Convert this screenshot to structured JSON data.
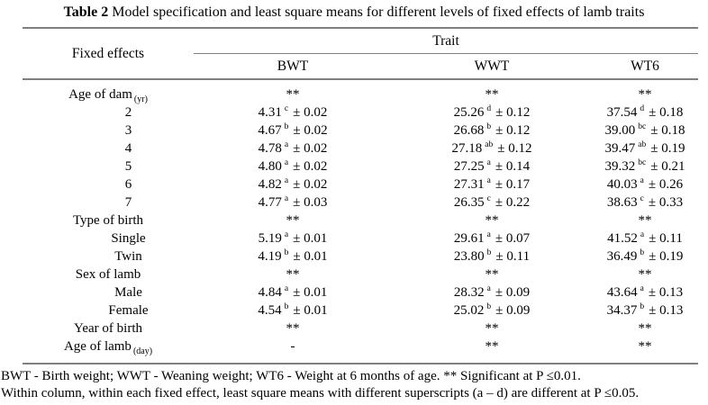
{
  "title": {
    "label": "Table 2",
    "text": " Model specification and least square means for different levels of fixed effects of lamb traits"
  },
  "table": {
    "header": {
      "fixed_effects": "Fixed effects",
      "trait_group": "Trait",
      "columns": [
        "BWT",
        "WWT",
        "WT6"
      ]
    },
    "rows": [
      {
        "label": "Age of dam",
        "label_sub": "(yr)",
        "kind": "category",
        "cells": [
          {
            "v": "**",
            "sup": "",
            "se": ""
          },
          {
            "v": "**",
            "sup": "",
            "se": ""
          },
          {
            "v": "**",
            "sup": "",
            "se": ""
          }
        ]
      },
      {
        "label": "2",
        "label_sub": "",
        "kind": "level",
        "cells": [
          {
            "v": "4.31",
            "sup": "c",
            "se": "± 0.02"
          },
          {
            "v": "25.26",
            "sup": "d",
            "se": "± 0.12"
          },
          {
            "v": "37.54",
            "sup": "d",
            "se": "± 0.18"
          }
        ]
      },
      {
        "label": "3",
        "label_sub": "",
        "kind": "level",
        "cells": [
          {
            "v": "4.67",
            "sup": "b",
            "se": "± 0.02"
          },
          {
            "v": "26.68",
            "sup": "b",
            "se": "± 0.12"
          },
          {
            "v": "39.00",
            "sup": "bc",
            "se": "± 0.18"
          }
        ]
      },
      {
        "label": "4",
        "label_sub": "",
        "kind": "level",
        "cells": [
          {
            "v": "4.78",
            "sup": "a",
            "se": "± 0.02"
          },
          {
            "v": "27.18",
            "sup": "ab",
            "se": "± 0.12"
          },
          {
            "v": "39.47",
            "sup": "ab",
            "se": "± 0.19"
          }
        ]
      },
      {
        "label": "5",
        "label_sub": "",
        "kind": "level",
        "cells": [
          {
            "v": "4.80",
            "sup": "a",
            "se": "± 0.02"
          },
          {
            "v": "27.25",
            "sup": "a",
            "se": "± 0.14"
          },
          {
            "v": "39.32",
            "sup": "bc",
            "se": "± 0.21"
          }
        ]
      },
      {
        "label": "6",
        "label_sub": "",
        "kind": "level",
        "cells": [
          {
            "v": "4.82",
            "sup": "a",
            "se": "± 0.02"
          },
          {
            "v": "27.31",
            "sup": "a",
            "se": "± 0.17"
          },
          {
            "v": "40.03",
            "sup": "a",
            "se": "± 0.26"
          }
        ]
      },
      {
        "label": "7",
        "label_sub": "",
        "kind": "level",
        "cells": [
          {
            "v": "4.77",
            "sup": "a",
            "se": "± 0.03"
          },
          {
            "v": "26.35",
            "sup": "c",
            "se": "± 0.22"
          },
          {
            "v": "38.63",
            "sup": "c",
            "se": "± 0.33"
          }
        ]
      },
      {
        "label": "Type of birth",
        "label_sub": "",
        "kind": "category",
        "cells": [
          {
            "v": "**",
            "sup": "",
            "se": ""
          },
          {
            "v": "**",
            "sup": "",
            "se": ""
          },
          {
            "v": "**",
            "sup": "",
            "se": ""
          }
        ]
      },
      {
        "label": "Single",
        "label_sub": "",
        "kind": "level",
        "cells": [
          {
            "v": "5.19",
            "sup": "a",
            "se": "± 0.01"
          },
          {
            "v": "29.61",
            "sup": "a",
            "se": "± 0.07"
          },
          {
            "v": "41.52",
            "sup": "a",
            "se": "± 0.11"
          }
        ]
      },
      {
        "label": "Twin",
        "label_sub": "",
        "kind": "level",
        "cells": [
          {
            "v": "4.19",
            "sup": "b",
            "se": "± 0.01"
          },
          {
            "v": "23.80",
            "sup": "b",
            "se": "± 0.11"
          },
          {
            "v": "36.49",
            "sup": "b",
            "se": "± 0.19"
          }
        ]
      },
      {
        "label": "Sex of lamb",
        "label_sub": "",
        "kind": "category",
        "cells": [
          {
            "v": "**",
            "sup": "",
            "se": ""
          },
          {
            "v": "**",
            "sup": "",
            "se": ""
          },
          {
            "v": "**",
            "sup": "",
            "se": ""
          }
        ]
      },
      {
        "label": "Male",
        "label_sub": "",
        "kind": "level",
        "cells": [
          {
            "v": "4.84",
            "sup": "a",
            "se": "± 0.01"
          },
          {
            "v": "28.32",
            "sup": "a",
            "se": "± 0.09"
          },
          {
            "v": "43.64",
            "sup": "a",
            "se": "± 0.13"
          }
        ]
      },
      {
        "label": "Female",
        "label_sub": "",
        "kind": "level",
        "cells": [
          {
            "v": "4.54",
            "sup": "b",
            "se": "± 0.01"
          },
          {
            "v": "25.02",
            "sup": "b",
            "se": "± 0.09"
          },
          {
            "v": "34.37",
            "sup": "b",
            "se": "± 0.13"
          }
        ]
      },
      {
        "label": "Year of birth",
        "label_sub": "",
        "kind": "category",
        "cells": [
          {
            "v": "**",
            "sup": "",
            "se": ""
          },
          {
            "v": "**",
            "sup": "",
            "se": ""
          },
          {
            "v": "**",
            "sup": "",
            "se": ""
          }
        ]
      },
      {
        "label": "Age of lamb",
        "label_sub": "(day)",
        "kind": "category",
        "cells": [
          {
            "v": "-",
            "sup": "",
            "se": ""
          },
          {
            "v": "**",
            "sup": "",
            "se": ""
          },
          {
            "v": "**",
            "sup": "",
            "se": ""
          }
        ]
      }
    ]
  },
  "footnotes": {
    "line1": "BWT - Birth weight; WWT - Weaning weight; WT6 - Weight at 6 months of age. ** Significant at P ≤0.01.",
    "line2": "Within column, within each fixed effect, least square means with different superscripts (a – d) are different at P ≤0.05."
  }
}
